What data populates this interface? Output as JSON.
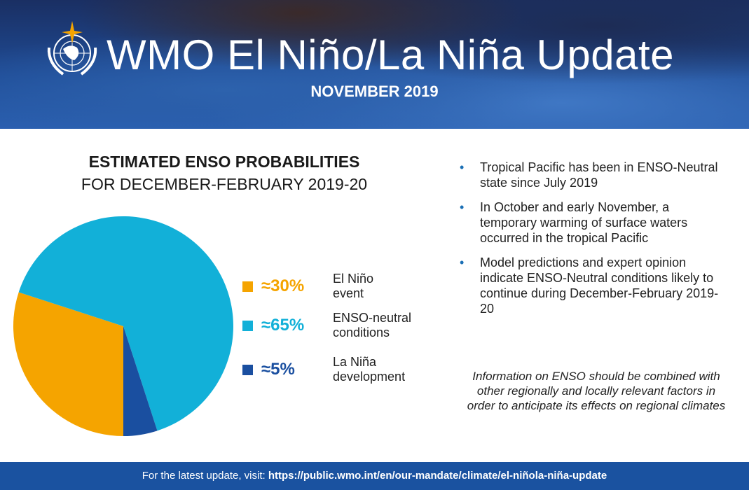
{
  "header": {
    "title": "WMO El Niño/La Niña Update",
    "subtitle": "NOVEMBER 2019"
  },
  "heading": {
    "line1": "ESTIMATED ENSO PROBABILITIES",
    "line2": "FOR DECEMBER-FEBRUARY 2019-20"
  },
  "chart_data": {
    "type": "pie",
    "title": "ESTIMATED ENSO PROBABILITIES FOR DECEMBER-FEBRUARY 2019-20",
    "slices": [
      {
        "label": "El Niño event",
        "value": 30,
        "display": "≈30%",
        "color": "#f5a400"
      },
      {
        "label": "ENSO-neutral conditions",
        "value": 65,
        "display": "≈65%",
        "color": "#12b0d8"
      },
      {
        "label": "La Niña development",
        "value": 5,
        "display": "≈5%",
        "color": "#1a4fa0"
      }
    ]
  },
  "legend": [
    {
      "pct": "≈30%",
      "line1": "El Niño",
      "line2": "event"
    },
    {
      "pct": "≈65%",
      "line1": "ENSO-neutral",
      "line2": "conditions"
    },
    {
      "pct": "≈5%",
      "line1": "La Niña",
      "line2": "development"
    }
  ],
  "bullets": [
    "Tropical Pacific has been in ENSO-Neutral state since July 2019",
    "In October and early November, a temporary warming of surface waters occurred in the tropical Pacific",
    "Model predictions and expert opinion indicate ENSO-Neutral conditions likely to continue during December-February 2019-20"
  ],
  "note": "Information on ENSO should be combined with other regionally and locally relevant factors in order to anticipate its effects on regional climates",
  "footer": {
    "prefix": "For the latest update, visit: ",
    "url": "https://public.wmo.int/en/our-mandate/climate/el-niñola-niña-update"
  }
}
